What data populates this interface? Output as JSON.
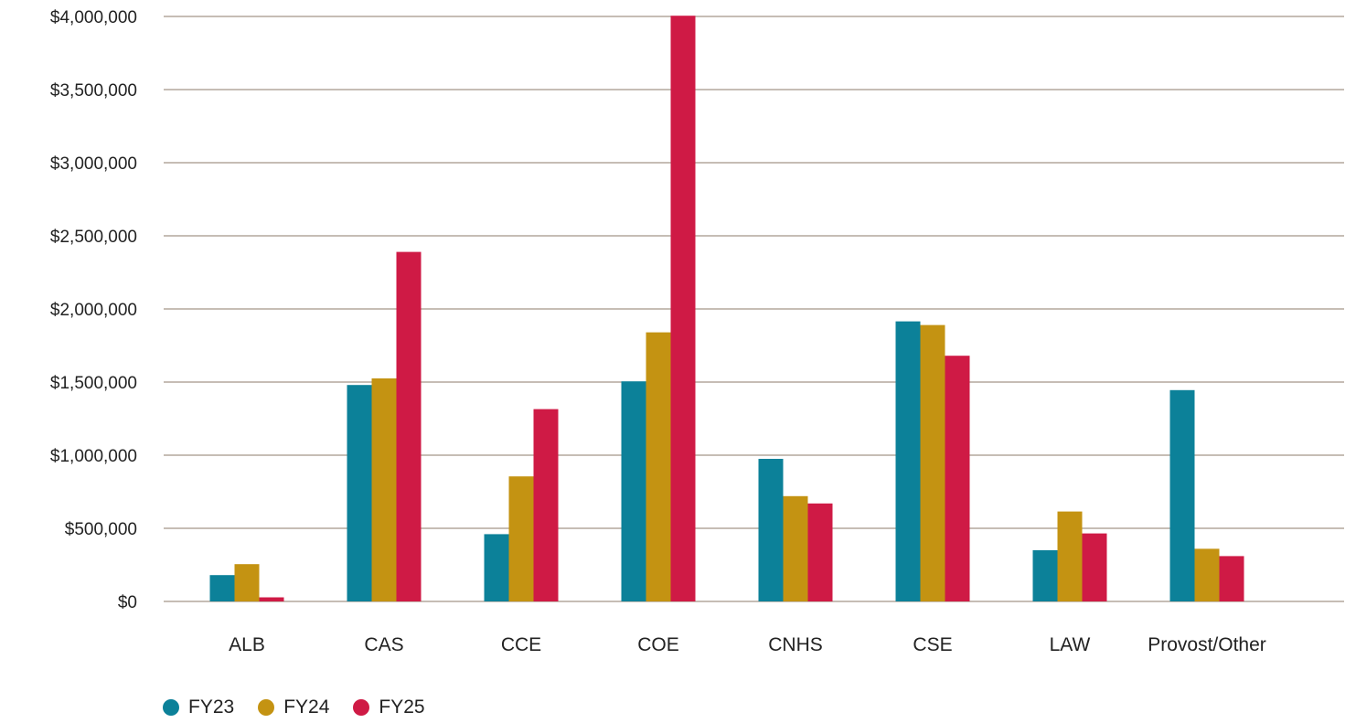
{
  "chart_data": {
    "type": "bar",
    "categories": [
      "ALB",
      "CAS",
      "CCE",
      "COE",
      "CNHS",
      "CSE",
      "LAW",
      "Provost/Other"
    ],
    "series": [
      {
        "name": "FY23",
        "color": "#0c8199",
        "values": [
          180000,
          1480000,
          460000,
          1505000,
          975000,
          1915000,
          350000,
          1445000
        ]
      },
      {
        "name": "FY24",
        "color": "#c49312",
        "values": [
          255000,
          1525000,
          855000,
          1840000,
          720000,
          1890000,
          615000,
          360000
        ]
      },
      {
        "name": "FY25",
        "color": "#cf1a45",
        "values": [
          28000,
          2390000,
          1315000,
          4005000,
          670000,
          1680000,
          465000,
          310000
        ]
      }
    ],
    "ylim": [
      0,
      4000000
    ],
    "yticks": [
      0,
      500000,
      1000000,
      1500000,
      2000000,
      2500000,
      3000000,
      3500000,
      4000000
    ],
    "ytick_labels": [
      "$0",
      "$500,000",
      "$1,000,000",
      "$1,500,000",
      "$2,000,000",
      "$2,500,000",
      "$3,000,000",
      "$3,500,000",
      "$4,000,000"
    ],
    "grid": true,
    "legend_position": "bottom-left",
    "title": "",
    "xlabel": "",
    "ylabel": ""
  }
}
